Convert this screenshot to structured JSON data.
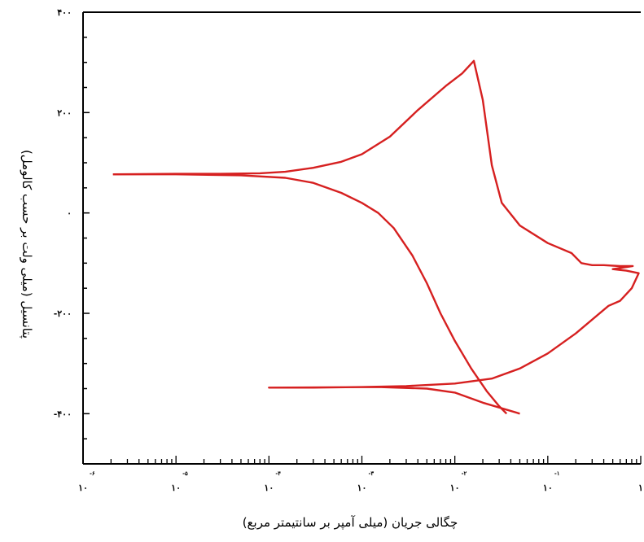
{
  "chart_data": {
    "type": "line",
    "title": "",
    "xlabel": "چگالی جریان (میلی آمپر بر سانتیمتر مربع)",
    "ylabel": "پتانسیل (میلی ولت بر حسب کالومل)",
    "x_scale": "log",
    "xlim": [
      1e-06,
      1
    ],
    "ylim": [
      -500,
      400
    ],
    "y_ticks": [
      {
        "value": 400,
        "label": "۴۰۰"
      },
      {
        "value": 200,
        "label": "۲۰۰"
      },
      {
        "value": 0,
        "label": "۰"
      },
      {
        "value": -200,
        "label": "-۲۰۰"
      },
      {
        "value": -400,
        "label": "-۴۰۰"
      }
    ],
    "x_ticks": [
      {
        "value": 1e-06,
        "base": "۱۰",
        "exp": "-۶"
      },
      {
        "value": 1e-05,
        "base": "۱۰",
        "exp": "-۵"
      },
      {
        "value": 0.0001,
        "base": "۱۰",
        "exp": "-۴"
      },
      {
        "value": 0.001,
        "base": "۱۰",
        "exp": "-۳"
      },
      {
        "value": 0.01,
        "base": "۱۰",
        "exp": "-۲"
      },
      {
        "value": 0.1,
        "base": "۱۰",
        "exp": "-۱"
      },
      {
        "value": 1,
        "base": "۱",
        "exp": ""
      }
    ],
    "series": [
      {
        "color": "#d62020",
        "points": [
          [
            2.1e-06,
            77
          ],
          [
            1e-05,
            78
          ],
          [
            3e-05,
            78
          ],
          [
            8e-05,
            79
          ],
          [
            0.00015,
            82
          ],
          [
            0.0003,
            90
          ],
          [
            0.0006,
            102
          ],
          [
            0.001,
            117
          ],
          [
            0.002,
            152
          ],
          [
            0.004,
            205
          ],
          [
            0.008,
            253
          ],
          [
            0.012,
            278
          ],
          [
            0.016,
            303
          ],
          [
            0.02,
            225
          ],
          [
            0.025,
            95
          ],
          [
            0.032,
            20
          ],
          [
            0.05,
            -25
          ],
          [
            0.1,
            -60
          ],
          [
            0.18,
            -80
          ],
          [
            0.23,
            -100
          ],
          [
            0.3,
            -104
          ],
          [
            0.4,
            -104
          ],
          [
            0.6,
            -106
          ],
          [
            0.82,
            -106
          ],
          [
            0.5,
            -112
          ],
          [
            0.7,
            -115
          ],
          [
            0.95,
            -120
          ],
          [
            0.8,
            -150
          ],
          [
            0.6,
            -175
          ],
          [
            0.45,
            -185
          ],
          [
            0.2,
            -240
          ],
          [
            0.1,
            -280
          ],
          [
            0.05,
            -310
          ],
          [
            0.025,
            -330
          ],
          [
            0.01,
            -340
          ],
          [
            0.003,
            -345
          ],
          [
            0.001,
            -347
          ],
          [
            0.0003,
            -348
          ],
          [
            0.00012,
            -348
          ],
          [
            0.0001,
            -348
          ],
          [
            0.0015,
            -347
          ],
          [
            0.005,
            -350
          ],
          [
            0.01,
            -358
          ],
          [
            0.02,
            -378
          ],
          [
            0.05,
            -400
          ]
        ]
      },
      {
        "color": "#d62020",
        "points": [
          [
            2.1e-06,
            77
          ],
          [
            1e-05,
            77
          ],
          [
            5e-05,
            75
          ],
          [
            0.00015,
            70
          ],
          [
            0.0003,
            60
          ],
          [
            0.0006,
            40
          ],
          [
            0.001,
            20
          ],
          [
            0.0015,
            0
          ],
          [
            0.0022,
            -30
          ],
          [
            0.0035,
            -85
          ],
          [
            0.005,
            -140
          ],
          [
            0.007,
            -200
          ],
          [
            0.01,
            -255
          ],
          [
            0.015,
            -310
          ],
          [
            0.022,
            -355
          ],
          [
            0.03,
            -385
          ],
          [
            0.036,
            -400
          ]
        ]
      }
    ],
    "grid": false,
    "legend": "none"
  }
}
